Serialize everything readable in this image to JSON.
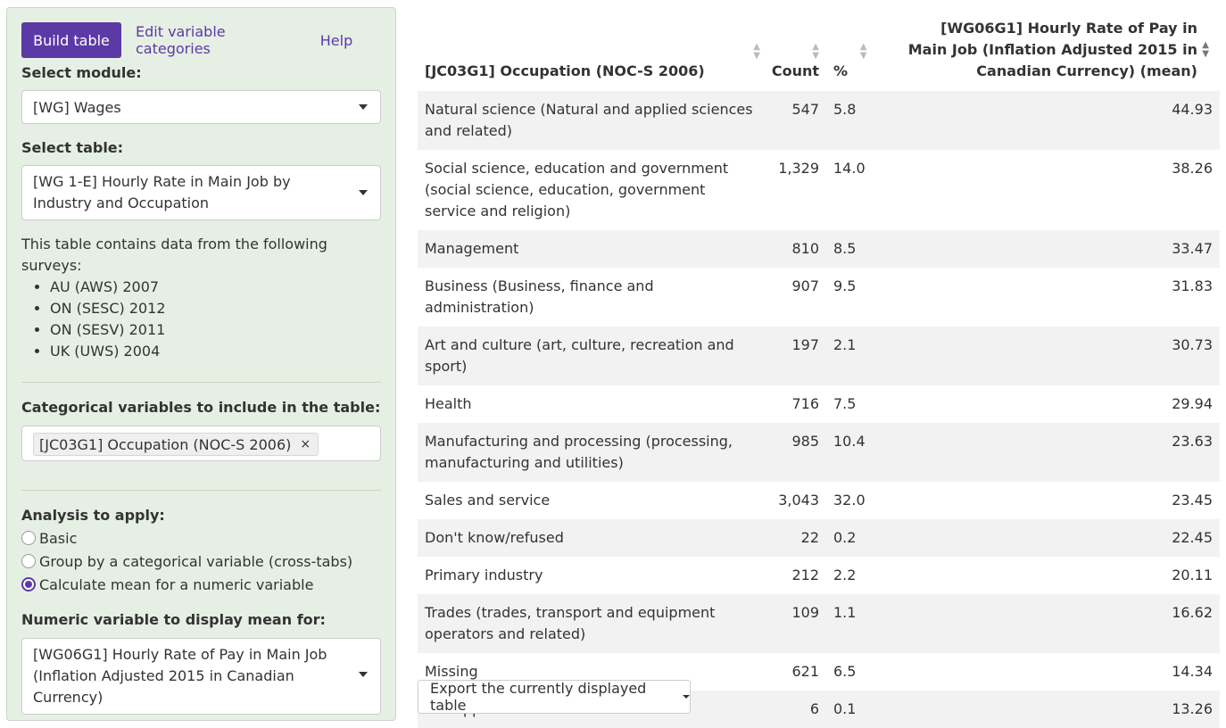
{
  "tabs": [
    "Build table",
    "Edit variable categories",
    "Help"
  ],
  "module": {
    "label": "Select module:",
    "value": "[WG] Wages"
  },
  "table_select": {
    "label": "Select table:",
    "value": "[WG 1-E] Hourly Rate in Main Job by Industry and Occupation"
  },
  "surveys": {
    "intro": "This table contains data from the following surveys:",
    "items": [
      "AU (AWS) 2007",
      "ON (SESC) 2012",
      "ON (SESV) 2011",
      "UK (UWS) 2004"
    ]
  },
  "categorical": {
    "label": "Categorical variables to include in the table:",
    "tag": "[JC03G1] Occupation (NOC-S 2006)",
    "remove": "×"
  },
  "analysis": {
    "label": "Analysis to apply:",
    "options": [
      "Basic",
      "Group by a categorical variable (cross-tabs)",
      "Calculate mean for a numeric variable"
    ],
    "selected_index": 2
  },
  "numeric": {
    "label": "Numeric variable to display mean for:",
    "value": "[WG06G1] Hourly Rate of Pay in Main Job (Inflation Adjusted 2015 in Canadian Currency)"
  },
  "table": {
    "headers": [
      "[JC03G1] Occupation (NOC-S 2006)",
      "Count",
      "%",
      "[WG06G1] Hourly Rate of Pay in Main Job (Inflation Adjusted 2015 in Canadian Currency) (mean)"
    ],
    "rows": [
      [
        "Natural science (Natural and applied sciences and related)",
        "547",
        "5.8",
        "44.93"
      ],
      [
        "Social science, education and government (social science, education, government service and religion)",
        "1,329",
        "14.0",
        "38.26"
      ],
      [
        "Management",
        "810",
        "8.5",
        "33.47"
      ],
      [
        "Business (Business, finance and administration)",
        "907",
        "9.5",
        "31.83"
      ],
      [
        "Art and culture (art, culture, recreation and sport)",
        "197",
        "2.1",
        "30.73"
      ],
      [
        "Health",
        "716",
        "7.5",
        "29.94"
      ],
      [
        "Manufacturing and processing (processing, manufacturing and utilities)",
        "985",
        "10.4",
        "23.63"
      ],
      [
        "Sales and service",
        "3,043",
        "32.0",
        "23.45"
      ],
      [
        "Don't know/refused",
        "22",
        "0.2",
        "22.45"
      ],
      [
        "Primary industry",
        "212",
        "2.2",
        "20.11"
      ],
      [
        "Trades (trades, transport and equipment operators and related)",
        "109",
        "1.1",
        "16.62"
      ],
      [
        "Missing",
        "621",
        "6.5",
        "14.34"
      ],
      [
        "Not applicable",
        "6",
        "0.1",
        "13.26"
      ]
    ]
  },
  "export_label": "Export the currently displayed table"
}
